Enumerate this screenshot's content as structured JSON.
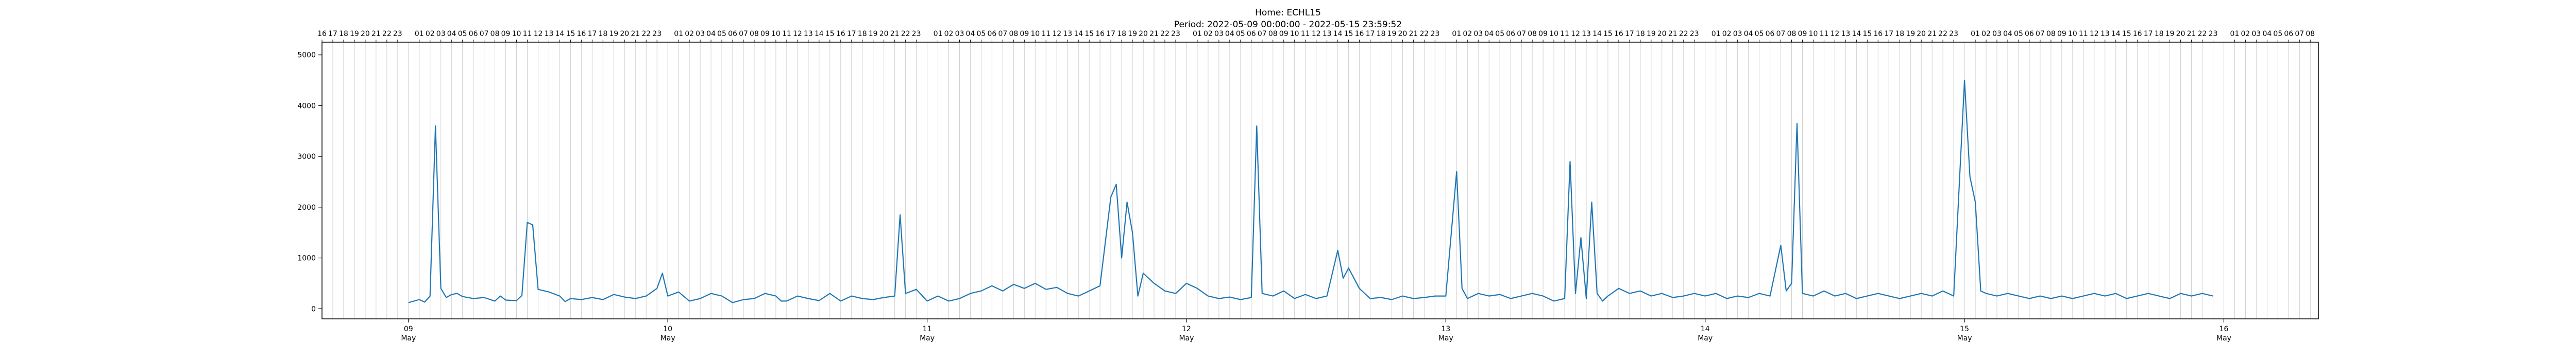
{
  "chart_data": {
    "type": "line",
    "title": "Home: ECHL15",
    "subtitle": "Period: 2022-05-09 00:00:00 - 2022-05-15 23:59:52",
    "xlabel": "",
    "ylabel": "",
    "x_range": [
      "2022-05-08T16:00",
      "2022-05-16T08:45"
    ],
    "ylim": [
      -200,
      5250
    ],
    "y_ticks": [
      0,
      1000,
      2000,
      3000,
      4000,
      5000
    ],
    "grid": {
      "x": true,
      "y": false
    },
    "line_color": "#1f77b4",
    "date_ticks": [
      {
        "x": "2022-05-09",
        "day": "09",
        "month": "May"
      },
      {
        "x": "2022-05-10",
        "day": "10",
        "month": "May"
      },
      {
        "x": "2022-05-11",
        "day": "11",
        "month": "May"
      },
      {
        "x": "2022-05-12",
        "day": "12",
        "month": "May"
      },
      {
        "x": "2022-05-13",
        "day": "13",
        "month": "May"
      },
      {
        "x": "2022-05-14",
        "day": "14",
        "month": "May"
      },
      {
        "x": "2022-05-15",
        "day": "15",
        "month": "May"
      },
      {
        "x": "2022-05-16",
        "day": "16",
        "month": "May"
      }
    ],
    "hour_axis": {
      "start": "2022-05-08T16:00",
      "end": "2022-05-16T08:00",
      "skip_hour": 0
    },
    "series": [
      {
        "values": [
          [
            "2022-05-09T00:00",
            120
          ],
          [
            "2022-05-09T01:00",
            180
          ],
          [
            "2022-05-09T01:30",
            130
          ],
          [
            "2022-05-09T02:00",
            250
          ],
          [
            "2022-05-09T02:30",
            3600
          ],
          [
            "2022-05-09T03:00",
            400
          ],
          [
            "2022-05-09T03:30",
            220
          ],
          [
            "2022-05-09T04:00",
            280
          ],
          [
            "2022-05-09T04:30",
            300
          ],
          [
            "2022-05-09T05:00",
            240
          ],
          [
            "2022-05-09T06:00",
            200
          ],
          [
            "2022-05-09T07:00",
            220
          ],
          [
            "2022-05-09T08:00",
            150
          ],
          [
            "2022-05-09T08:30",
            250
          ],
          [
            "2022-05-09T09:00",
            170
          ],
          [
            "2022-05-09T10:00",
            160
          ],
          [
            "2022-05-09T10:30",
            260
          ],
          [
            "2022-05-09T11:00",
            1700
          ],
          [
            "2022-05-09T11:30",
            1650
          ],
          [
            "2022-05-09T12:00",
            380
          ],
          [
            "2022-05-09T13:00",
            330
          ],
          [
            "2022-05-09T14:00",
            250
          ],
          [
            "2022-05-09T14:30",
            140
          ],
          [
            "2022-05-09T15:00",
            200
          ],
          [
            "2022-05-09T16:00",
            180
          ],
          [
            "2022-05-09T17:00",
            220
          ],
          [
            "2022-05-09T18:00",
            180
          ],
          [
            "2022-05-09T19:00",
            280
          ],
          [
            "2022-05-09T20:00",
            230
          ],
          [
            "2022-05-09T21:00",
            200
          ],
          [
            "2022-05-09T22:00",
            250
          ],
          [
            "2022-05-09T23:00",
            400
          ],
          [
            "2022-05-09T23:30",
            700
          ],
          [
            "2022-05-10T00:00",
            250
          ],
          [
            "2022-05-10T01:00",
            330
          ],
          [
            "2022-05-10T02:00",
            150
          ],
          [
            "2022-05-10T03:00",
            200
          ],
          [
            "2022-05-10T04:00",
            300
          ],
          [
            "2022-05-10T05:00",
            250
          ],
          [
            "2022-05-10T06:00",
            120
          ],
          [
            "2022-05-10T07:00",
            180
          ],
          [
            "2022-05-10T08:00",
            200
          ],
          [
            "2022-05-10T09:00",
            300
          ],
          [
            "2022-05-10T10:00",
            250
          ],
          [
            "2022-05-10T10:30",
            150
          ],
          [
            "2022-05-10T11:00",
            150
          ],
          [
            "2022-05-10T12:00",
            250
          ],
          [
            "2022-05-10T13:00",
            200
          ],
          [
            "2022-05-10T14:00",
            160
          ],
          [
            "2022-05-10T15:00",
            300
          ],
          [
            "2022-05-10T16:00",
            150
          ],
          [
            "2022-05-10T17:00",
            250
          ],
          [
            "2022-05-10T18:00",
            200
          ],
          [
            "2022-05-10T19:00",
            180
          ],
          [
            "2022-05-10T20:00",
            220
          ],
          [
            "2022-05-10T21:00",
            250
          ],
          [
            "2022-05-10T21:30",
            1850
          ],
          [
            "2022-05-10T22:00",
            300
          ],
          [
            "2022-05-10T23:00",
            380
          ],
          [
            "2022-05-11T00:00",
            150
          ],
          [
            "2022-05-11T01:00",
            250
          ],
          [
            "2022-05-11T02:00",
            150
          ],
          [
            "2022-05-11T03:00",
            200
          ],
          [
            "2022-05-11T04:00",
            300
          ],
          [
            "2022-05-11T05:00",
            350
          ],
          [
            "2022-05-11T06:00",
            450
          ],
          [
            "2022-05-11T07:00",
            350
          ],
          [
            "2022-05-11T08:00",
            480
          ],
          [
            "2022-05-11T09:00",
            400
          ],
          [
            "2022-05-11T10:00",
            500
          ],
          [
            "2022-05-11T11:00",
            380
          ],
          [
            "2022-05-11T12:00",
            420
          ],
          [
            "2022-05-11T13:00",
            300
          ],
          [
            "2022-05-11T14:00",
            250
          ],
          [
            "2022-05-11T15:00",
            350
          ],
          [
            "2022-05-11T16:00",
            450
          ],
          [
            "2022-05-11T17:00",
            2200
          ],
          [
            "2022-05-11T17:30",
            2450
          ],
          [
            "2022-05-11T18:00",
            1000
          ],
          [
            "2022-05-11T18:30",
            2100
          ],
          [
            "2022-05-11T19:00",
            1500
          ],
          [
            "2022-05-11T19:30",
            250
          ],
          [
            "2022-05-11T20:00",
            700
          ],
          [
            "2022-05-11T21:00",
            500
          ],
          [
            "2022-05-11T22:00",
            350
          ],
          [
            "2022-05-11T23:00",
            300
          ],
          [
            "2022-05-12T00:00",
            500
          ],
          [
            "2022-05-12T01:00",
            400
          ],
          [
            "2022-05-12T02:00",
            250
          ],
          [
            "2022-05-12T03:00",
            200
          ],
          [
            "2022-05-12T04:00",
            230
          ],
          [
            "2022-05-12T05:00",
            180
          ],
          [
            "2022-05-12T06:00",
            220
          ],
          [
            "2022-05-12T06:30",
            3600
          ],
          [
            "2022-05-12T07:00",
            300
          ],
          [
            "2022-05-12T08:00",
            250
          ],
          [
            "2022-05-12T09:00",
            350
          ],
          [
            "2022-05-12T10:00",
            200
          ],
          [
            "2022-05-12T11:00",
            280
          ],
          [
            "2022-05-12T12:00",
            200
          ],
          [
            "2022-05-12T13:00",
            250
          ],
          [
            "2022-05-12T14:00",
            1150
          ],
          [
            "2022-05-12T14:30",
            600
          ],
          [
            "2022-05-12T15:00",
            800
          ],
          [
            "2022-05-12T16:00",
            400
          ],
          [
            "2022-05-12T17:00",
            200
          ],
          [
            "2022-05-12T18:00",
            220
          ],
          [
            "2022-05-12T19:00",
            180
          ],
          [
            "2022-05-12T20:00",
            250
          ],
          [
            "2022-05-12T21:00",
            200
          ],
          [
            "2022-05-12T22:00",
            220
          ],
          [
            "2022-05-12T23:00",
            250
          ],
          [
            "2022-05-13T00:00",
            250
          ],
          [
            "2022-05-13T01:00",
            2700
          ],
          [
            "2022-05-13T01:30",
            400
          ],
          [
            "2022-05-13T02:00",
            200
          ],
          [
            "2022-05-13T03:00",
            300
          ],
          [
            "2022-05-13T04:00",
            250
          ],
          [
            "2022-05-13T05:00",
            280
          ],
          [
            "2022-05-13T06:00",
            200
          ],
          [
            "2022-05-13T07:00",
            250
          ],
          [
            "2022-05-13T08:00",
            300
          ],
          [
            "2022-05-13T09:00",
            250
          ],
          [
            "2022-05-13T10:00",
            150
          ],
          [
            "2022-05-13T11:00",
            200
          ],
          [
            "2022-05-13T11:30",
            2900
          ],
          [
            "2022-05-13T12:00",
            300
          ],
          [
            "2022-05-13T12:30",
            1400
          ],
          [
            "2022-05-13T13:00",
            200
          ],
          [
            "2022-05-13T13:30",
            2100
          ],
          [
            "2022-05-13T14:00",
            300
          ],
          [
            "2022-05-13T14:30",
            150
          ],
          [
            "2022-05-13T15:00",
            250
          ],
          [
            "2022-05-13T16:00",
            400
          ],
          [
            "2022-05-13T17:00",
            300
          ],
          [
            "2022-05-13T18:00",
            350
          ],
          [
            "2022-05-13T19:00",
            250
          ],
          [
            "2022-05-13T20:00",
            300
          ],
          [
            "2022-05-13T21:00",
            220
          ],
          [
            "2022-05-13T22:00",
            250
          ],
          [
            "2022-05-13T23:00",
            300
          ],
          [
            "2022-05-14T00:00",
            250
          ],
          [
            "2022-05-14T01:00",
            300
          ],
          [
            "2022-05-14T02:00",
            200
          ],
          [
            "2022-05-14T03:00",
            250
          ],
          [
            "2022-05-14T04:00",
            220
          ],
          [
            "2022-05-14T05:00",
            300
          ],
          [
            "2022-05-14T06:00",
            250
          ],
          [
            "2022-05-14T07:00",
            1250
          ],
          [
            "2022-05-14T07:30",
            350
          ],
          [
            "2022-05-14T08:00",
            500
          ],
          [
            "2022-05-14T08:30",
            3650
          ],
          [
            "2022-05-14T09:00",
            300
          ],
          [
            "2022-05-14T10:00",
            250
          ],
          [
            "2022-05-14T11:00",
            350
          ],
          [
            "2022-05-14T12:00",
            250
          ],
          [
            "2022-05-14T13:00",
            300
          ],
          [
            "2022-05-14T14:00",
            200
          ],
          [
            "2022-05-14T15:00",
            250
          ],
          [
            "2022-05-14T16:00",
            300
          ],
          [
            "2022-05-14T17:00",
            250
          ],
          [
            "2022-05-14T18:00",
            200
          ],
          [
            "2022-05-14T19:00",
            250
          ],
          [
            "2022-05-14T20:00",
            300
          ],
          [
            "2022-05-14T21:00",
            250
          ],
          [
            "2022-05-14T22:00",
            350
          ],
          [
            "2022-05-14T23:00",
            250
          ],
          [
            "2022-05-15T00:00",
            4500
          ],
          [
            "2022-05-15T00:30",
            2600
          ],
          [
            "2022-05-15T01:00",
            2100
          ],
          [
            "2022-05-15T01:30",
            350
          ],
          [
            "2022-05-15T02:00",
            300
          ],
          [
            "2022-05-15T03:00",
            250
          ],
          [
            "2022-05-15T04:00",
            300
          ],
          [
            "2022-05-15T05:00",
            250
          ],
          [
            "2022-05-15T06:00",
            200
          ],
          [
            "2022-05-15T07:00",
            250
          ],
          [
            "2022-05-15T08:00",
            200
          ],
          [
            "2022-05-15T09:00",
            250
          ],
          [
            "2022-05-15T10:00",
            200
          ],
          [
            "2022-05-15T11:00",
            250
          ],
          [
            "2022-05-15T12:00",
            300
          ],
          [
            "2022-05-15T13:00",
            250
          ],
          [
            "2022-05-15T14:00",
            300
          ],
          [
            "2022-05-15T15:00",
            200
          ],
          [
            "2022-05-15T16:00",
            250
          ],
          [
            "2022-05-15T17:00",
            300
          ],
          [
            "2022-05-15T18:00",
            250
          ],
          [
            "2022-05-15T19:00",
            200
          ],
          [
            "2022-05-15T20:00",
            300
          ],
          [
            "2022-05-15T21:00",
            250
          ],
          [
            "2022-05-15T22:00",
            300
          ],
          [
            "2022-05-15T23:00",
            250
          ]
        ]
      }
    ]
  }
}
